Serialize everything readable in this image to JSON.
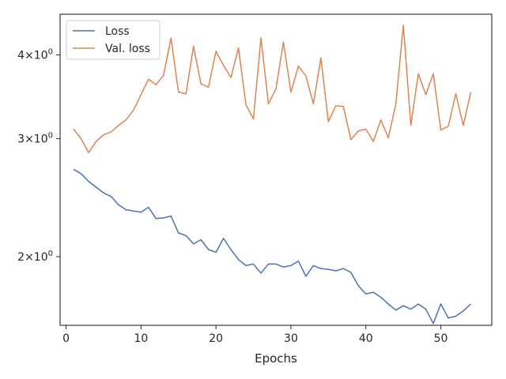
{
  "chart_data": {
    "type": "line",
    "xlabel": "Epochs",
    "ylabel": "",
    "xlim": [
      -0.8,
      56.8
    ],
    "ylim": [
      1.58,
      4.6
    ],
    "yscale": "log",
    "grid": false,
    "legend_position": "top-left",
    "x_ticks": [
      0,
      10,
      20,
      30,
      40,
      50
    ],
    "y_ticks": [
      {
        "value": 2,
        "base": "2",
        "exp": "0"
      },
      {
        "value": 3,
        "base": "3",
        "exp": "0"
      },
      {
        "value": 4,
        "base": "4",
        "exp": "0"
      }
    ],
    "x": [
      1,
      2,
      3,
      4,
      5,
      6,
      7,
      8,
      9,
      10,
      11,
      12,
      13,
      14,
      15,
      16,
      17,
      18,
      19,
      20,
      21,
      22,
      23,
      24,
      25,
      26,
      27,
      28,
      29,
      30,
      31,
      32,
      33,
      34,
      35,
      36,
      37,
      38,
      39,
      40,
      41,
      42,
      43,
      44,
      45,
      46,
      47,
      48,
      49,
      50,
      51,
      52,
      53,
      54
    ],
    "series": [
      {
        "name": "Loss",
        "color": "#4c72b0",
        "values": [
          2.7,
          2.66,
          2.59,
          2.54,
          2.49,
          2.46,
          2.39,
          2.35,
          2.34,
          2.33,
          2.37,
          2.28,
          2.285,
          2.3,
          2.17,
          2.15,
          2.09,
          2.12,
          2.05,
          2.03,
          2.13,
          2.05,
          1.98,
          1.94,
          1.95,
          1.89,
          1.95,
          1.95,
          1.93,
          1.94,
          1.97,
          1.87,
          1.94,
          1.92,
          1.915,
          1.905,
          1.92,
          1.895,
          1.81,
          1.76,
          1.77,
          1.74,
          1.7,
          1.665,
          1.69,
          1.67,
          1.7,
          1.67,
          1.59,
          1.7,
          1.62,
          1.63,
          1.66,
          1.7
        ]
      },
      {
        "name": "Val. loss",
        "color": "#dd8452",
        "values": [
          3.1,
          3.0,
          2.86,
          2.97,
          3.04,
          3.07,
          3.14,
          3.2,
          3.31,
          3.49,
          3.68,
          3.61,
          3.73,
          4.24,
          3.52,
          3.5,
          4.12,
          3.62,
          3.58,
          4.05,
          3.86,
          3.7,
          4.1,
          3.37,
          3.21,
          4.24,
          3.38,
          3.56,
          4.18,
          3.52,
          3.85,
          3.72,
          3.38,
          3.96,
          3.18,
          3.36,
          3.35,
          2.99,
          3.08,
          3.1,
          2.97,
          3.2,
          3.01,
          3.38,
          4.43,
          3.14,
          3.75,
          3.49,
          3.75,
          3.09,
          3.13,
          3.5,
          3.14,
          3.52
        ]
      }
    ]
  }
}
